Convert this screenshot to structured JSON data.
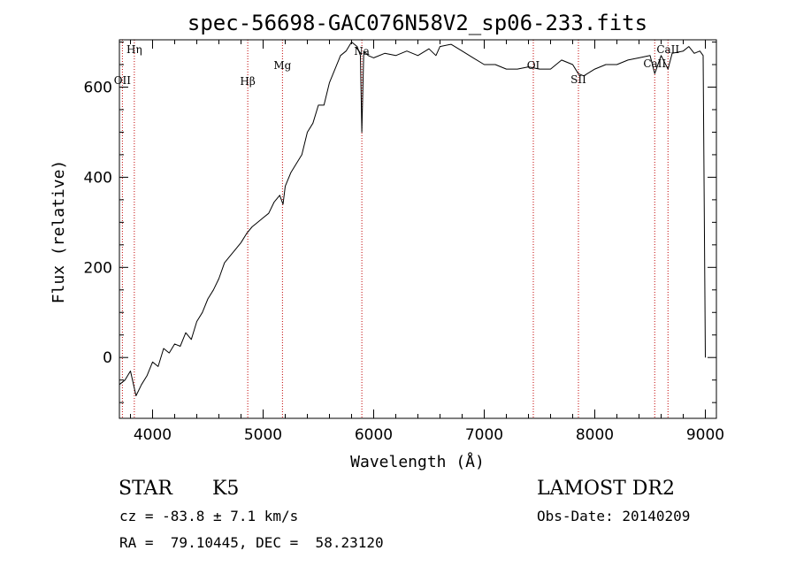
{
  "chart_data": {
    "type": "line",
    "title": "spec-56698-GAC076N58V2_sp06-233.fits",
    "xlabel": "Wavelength (Å)",
    "ylabel": "Flux (relative)",
    "xlim": [
      3700,
      9100
    ],
    "ylim": [
      -135,
      705
    ],
    "x_ticks": [
      4000,
      5000,
      6000,
      7000,
      8000,
      9000
    ],
    "y_ticks": [
      0,
      200,
      400,
      600
    ],
    "x_tick_labels": [
      "4000",
      "5000",
      "6000",
      "7000",
      "8000",
      "9000"
    ],
    "y_tick_labels": [
      "0",
      "200",
      "400",
      "600"
    ],
    "grid": false,
    "series": [
      {
        "color": "#000000",
        "x": [
          3700,
          3750,
          3800,
          3850,
          3900,
          3950,
          4000,
          4050,
          4100,
          4150,
          4200,
          4250,
          4300,
          4350,
          4400,
          4450,
          4500,
          4550,
          4600,
          4650,
          4700,
          4750,
          4800,
          4850,
          4900,
          4950,
          5000,
          5050,
          5100,
          5150,
          5180,
          5200,
          5250,
          5300,
          5350,
          5400,
          5450,
          5500,
          5550,
          5600,
          5650,
          5700,
          5750,
          5800,
          5850,
          5880,
          5893,
          5910,
          5950,
          6000,
          6100,
          6200,
          6300,
          6400,
          6500,
          6563,
          6600,
          6700,
          6800,
          6900,
          7000,
          7100,
          7200,
          7300,
          7400,
          7500,
          7600,
          7700,
          7800,
          7850,
          7900,
          8000,
          8100,
          8200,
          8300,
          8400,
          8500,
          8542,
          8600,
          8662,
          8700,
          8800,
          8850,
          8900,
          8950,
          8980,
          9000
        ],
        "y": [
          -60,
          -50,
          -30,
          -85,
          -60,
          -40,
          -10,
          -20,
          20,
          10,
          30,
          25,
          55,
          40,
          80,
          100,
          130,
          150,
          175,
          210,
          225,
          240,
          255,
          275,
          290,
          300,
          310,
          320,
          345,
          360,
          340,
          380,
          410,
          430,
          450,
          500,
          520,
          560,
          560,
          610,
          640,
          670,
          680,
          700,
          690,
          670,
          500,
          680,
          670,
          665,
          675,
          670,
          680,
          670,
          685,
          670,
          690,
          695,
          680,
          665,
          650,
          650,
          640,
          640,
          645,
          640,
          640,
          660,
          650,
          630,
          625,
          640,
          650,
          650,
          660,
          665,
          670,
          630,
          670,
          640,
          675,
          680,
          690,
          675,
          680,
          670,
          0
        ]
      }
    ],
    "spectral_lines": [
      {
        "name": "Hη",
        "x": 3835
      },
      {
        "name": "OII",
        "x": 3727
      },
      {
        "name": "Hβ",
        "x": 4861
      },
      {
        "name": "Mg",
        "x": 5175
      },
      {
        "name": "Na",
        "x": 5893
      },
      {
        "name": "OI",
        "x": 7444
      },
      {
        "name": "SII",
        "x": 7852
      },
      {
        "name": "CaII",
        "x": 8542
      },
      {
        "name": "CaII",
        "x": 8662
      }
    ]
  },
  "info": {
    "object_class": "STAR",
    "subclass": "K5",
    "survey": "LAMOST DR2",
    "cz": "cz = -83.8 ± 7.1 km/s",
    "obs_date": "Obs-Date: 20140209",
    "coords": "RA =  79.10445, DEC =  58.23120"
  }
}
